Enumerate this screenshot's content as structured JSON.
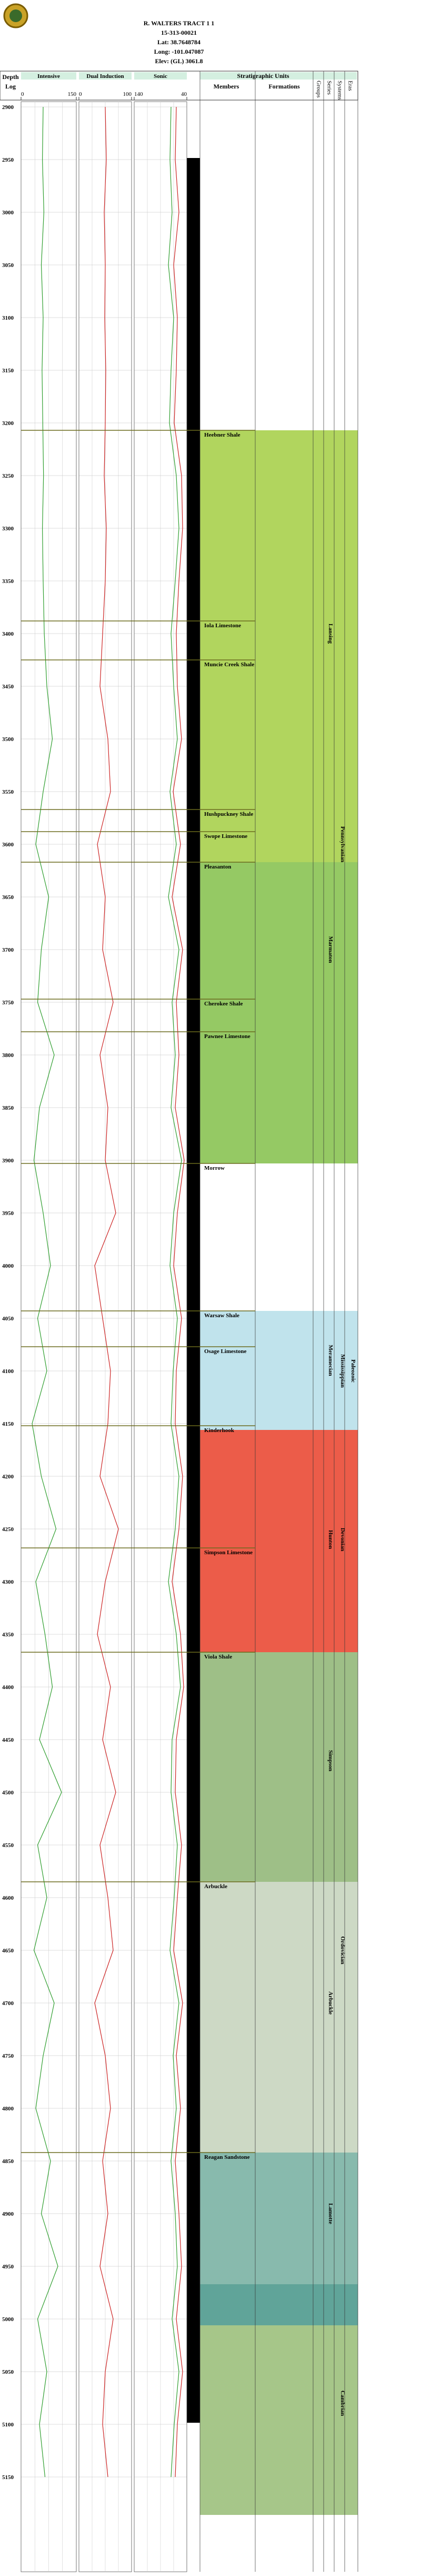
{
  "header": {
    "title": "R. WALTERS TRACT 1 1",
    "api": "15-313-00021",
    "lat": "Lat: 38.7648784",
    "long": "Long: -101.047087",
    "elev": "Elev: (GL) 3061.8"
  },
  "chart_data": {
    "type": "log",
    "depth_title": "Depth",
    "depth_subtitle": "Log",
    "ylim": [
      2895,
      5240
    ],
    "yticks": [
      2900,
      2950,
      3000,
      3050,
      3100,
      3150,
      3200,
      3250,
      3300,
      3350,
      3400,
      3450,
      3500,
      3550,
      3600,
      3650,
      3700,
      3750,
      3800,
      3850,
      3900,
      3950,
      4000,
      4050,
      4100,
      4150,
      4200,
      4250,
      4300,
      4350,
      4400,
      4450,
      4500,
      4550,
      4600,
      4650,
      4700,
      4750,
      4800,
      4850,
      4900,
      4950,
      5000,
      5050,
      5100,
      5150
    ],
    "tracks": [
      {
        "name": "Intensive",
        "xlim": [
          0,
          150
        ],
        "xticks": [
          0,
          150
        ],
        "series": [
          {
            "color": "#2e9e2e",
            "values": [
              60,
              58,
              62,
              55,
              60,
              57,
              59,
              61,
              58,
              60,
              63,
              70,
              85,
              60,
              40,
              75,
              55,
              45,
              90,
              50,
              35,
              60,
              80,
              45,
              70,
              30,
              55,
              95,
              40,
              65,
              85,
              50,
              110,
              45,
              70,
              35,
              90,
              60,
              40,
              80,
              55,
              100,
              45,
              70,
              50,
              65
            ]
          }
        ]
      },
      {
        "name": "Dual Induction",
        "xlim": [
          0,
          100
        ],
        "xticks": [
          0,
          100
        ],
        "series": [
          {
            "color": "#cc2222",
            "values": [
              50,
              52,
              48,
              50,
              49,
              51,
              50,
              48,
              52,
              50,
              45,
              40,
              55,
              60,
              35,
              50,
              45,
              65,
              40,
              55,
              50,
              70,
              30,
              45,
              60,
              55,
              40,
              75,
              50,
              35,
              60,
              45,
              70,
              40,
              55,
              65,
              30,
              50,
              60,
              45,
              55,
              40,
              65,
              50,
              45,
              55
            ]
          }
        ]
      },
      {
        "name": "Sonic",
        "xlim": [
          140,
          40
        ],
        "xticks": [
          140,
          40
        ],
        "series": [
          {
            "color": "#2e9e2e",
            "values": [
              70,
              72,
              68,
              75,
              65,
              70,
              73,
              60,
              55,
              62,
              70,
              65,
              58,
              72,
              60,
              75,
              55,
              68,
              62,
              70,
              50,
              65,
              72,
              58,
              66,
              70,
              55,
              62,
              75,
              60,
              52,
              68,
              70,
              58,
              64,
              72,
              55,
              66,
              60,
              70,
              62,
              58,
              68,
              55,
              64,
              70
            ]
          },
          {
            "color": "#cc2222",
            "values": [
              60,
              62,
              55,
              65,
              58,
              60,
              64,
              50,
              48,
              55,
              60,
              58,
              50,
              66,
              52,
              68,
              48,
              60,
              55,
              62,
              45,
              58,
              65,
              50,
              60,
              62,
              48,
              55,
              68,
              52,
              46,
              60,
              62,
              50,
              58,
              65,
              48,
              60,
              52,
              62,
              55,
              50,
              60,
              48,
              58,
              62
            ]
          }
        ]
      }
    ],
    "strat_title": "Stratigraphic Units",
    "members_title": "Members",
    "formations_title": "Formations",
    "columns": [
      "Groups",
      "Series",
      "Systems",
      "Eras"
    ],
    "zones": [
      {
        "top": 3207,
        "bottom": 3617,
        "color": "#a9d04c"
      },
      {
        "top": 3617,
        "bottom": 3903,
        "color": "#8ac353"
      },
      {
        "top": 4043,
        "bottom": 4156,
        "color": "#b9e0ea"
      },
      {
        "top": 4156,
        "bottom": 4367,
        "color": "#ea4a35"
      },
      {
        "top": 4367,
        "bottom": 4585,
        "color": "#93b87a"
      },
      {
        "top": 4585,
        "bottom": 4842,
        "color": "#c8d5bf"
      },
      {
        "top": 4842,
        "bottom": 4967,
        "color": "#7bb3a4"
      },
      {
        "top": 4967,
        "bottom": 5006,
        "color": "#4f9a8e"
      },
      {
        "top": 5006,
        "bottom": 5186,
        "color": "#9cc07c"
      }
    ],
    "members": [
      {
        "label": "Heebner Shale",
        "depth": 3207
      },
      {
        "label": "Iola Limestone",
        "depth": 3388
      },
      {
        "label": "Muncie Creek Shale",
        "depth": 3425
      },
      {
        "label": "Hushpuckney Shale",
        "depth": 3567
      },
      {
        "label": "Swope Limestone",
        "depth": 3588
      },
      {
        "label": "Pleasanton",
        "depth": 3617
      },
      {
        "label": "Cherokee Shale",
        "depth": 3747
      },
      {
        "label": "Pawnee Limestone",
        "depth": 3778
      },
      {
        "label": "Morrow",
        "depth": 3903
      },
      {
        "label": "Warsaw Shale",
        "depth": 4043
      },
      {
        "label": "Osage Limestone",
        "depth": 4077
      },
      {
        "label": "Kinderhook",
        "depth": 4152
      },
      {
        "label": "Simpson Limestone",
        "depth": 4268
      },
      {
        "label": "Viola Shale",
        "depth": 4367
      },
      {
        "label": "Arbuckle",
        "depth": 4585
      },
      {
        "label": "Reagan Sandstone",
        "depth": 4842
      }
    ],
    "formations": [
      {
        "label": "Lansing",
        "depth": 3400
      },
      {
        "label": "Marmaton",
        "depth": 3700
      },
      {
        "label": "Meramecian",
        "depth": 4090
      },
      {
        "label": "Hunton",
        "depth": 4260
      },
      {
        "label": "Simpson",
        "depth": 4470
      },
      {
        "label": "Arbuckle",
        "depth": 4700
      },
      {
        "label": "Lamotte",
        "depth": 4900
      }
    ],
    "systems": [
      {
        "label": "Pennsylvanian",
        "depth": 3600
      },
      {
        "label": "Mississippian",
        "depth": 4100
      },
      {
        "label": "Devonian",
        "depth": 4260
      },
      {
        "label": "Ordovician",
        "depth": 4650
      },
      {
        "label": "Cambrian",
        "depth": 5080
      }
    ],
    "eras": [
      {
        "label": "Paleozoic",
        "depth": 4100
      }
    ]
  }
}
